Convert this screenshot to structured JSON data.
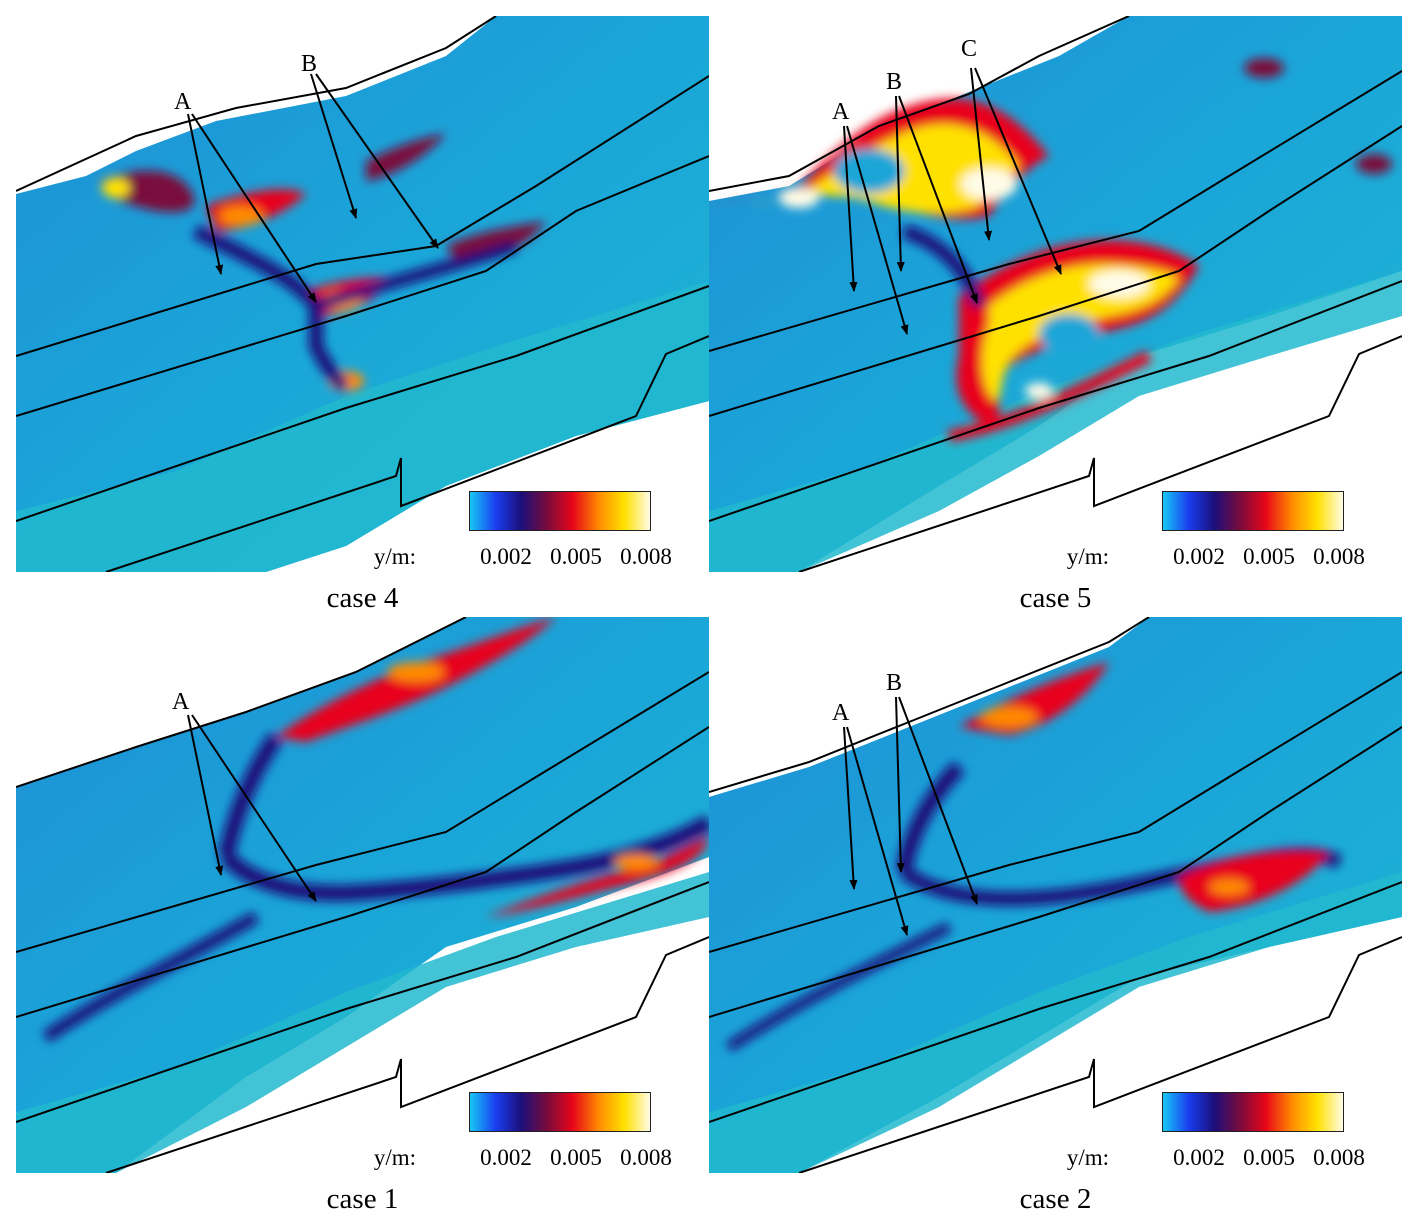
{
  "panels": [
    {
      "id": "case4",
      "caption": "case 4",
      "labels": [
        "A",
        "B"
      ]
    },
    {
      "id": "case5",
      "caption": "case 5",
      "labels": [
        "A",
        "B",
        "C"
      ]
    },
    {
      "id": "case1",
      "caption": "case 1",
      "labels": [
        "A"
      ]
    },
    {
      "id": "case2",
      "caption": "case 2",
      "labels": [
        "A",
        "B"
      ]
    }
  ],
  "colorbar": {
    "unit": "y/m:",
    "ticks": [
      "0.002",
      "0.005",
      "0.008"
    ],
    "colors": [
      "#16c8f5",
      "#1a3df0",
      "#1b0f7a",
      "#7a0b3c",
      "#e8061a",
      "#ff8a00",
      "#ffe100",
      "#fffbe6"
    ]
  }
}
